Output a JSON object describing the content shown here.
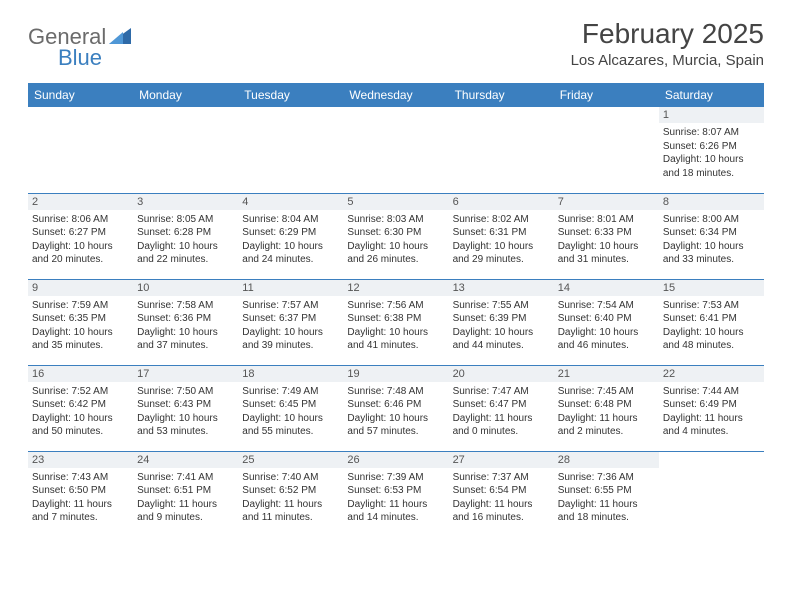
{
  "brand": {
    "part1": "General",
    "part2": "Blue",
    "text_color": "#6b6b6b",
    "accent_color": "#3b7fbf"
  },
  "title": {
    "month": "February 2025",
    "location": "Los Alcazares, Murcia, Spain",
    "title_fontsize": 28,
    "location_fontsize": 15
  },
  "colors": {
    "header_bg": "#3b7fbf",
    "header_text": "#ffffff",
    "daynum_bg": "#eef1f4",
    "border": "#3b7fbf",
    "body_text": "#333333"
  },
  "weekdays": [
    "Sunday",
    "Monday",
    "Tuesday",
    "Wednesday",
    "Thursday",
    "Friday",
    "Saturday"
  ],
  "weeks": [
    [
      {
        "day": "",
        "sunrise": "",
        "sunset": "",
        "daylight": "",
        "empty": true
      },
      {
        "day": "",
        "sunrise": "",
        "sunset": "",
        "daylight": "",
        "empty": true
      },
      {
        "day": "",
        "sunrise": "",
        "sunset": "",
        "daylight": "",
        "empty": true
      },
      {
        "day": "",
        "sunrise": "",
        "sunset": "",
        "daylight": "",
        "empty": true
      },
      {
        "day": "",
        "sunrise": "",
        "sunset": "",
        "daylight": "",
        "empty": true
      },
      {
        "day": "",
        "sunrise": "",
        "sunset": "",
        "daylight": "",
        "empty": true
      },
      {
        "day": "1",
        "sunrise": "Sunrise: 8:07 AM",
        "sunset": "Sunset: 6:26 PM",
        "daylight": "Daylight: 10 hours and 18 minutes."
      }
    ],
    [
      {
        "day": "2",
        "sunrise": "Sunrise: 8:06 AM",
        "sunset": "Sunset: 6:27 PM",
        "daylight": "Daylight: 10 hours and 20 minutes."
      },
      {
        "day": "3",
        "sunrise": "Sunrise: 8:05 AM",
        "sunset": "Sunset: 6:28 PM",
        "daylight": "Daylight: 10 hours and 22 minutes."
      },
      {
        "day": "4",
        "sunrise": "Sunrise: 8:04 AM",
        "sunset": "Sunset: 6:29 PM",
        "daylight": "Daylight: 10 hours and 24 minutes."
      },
      {
        "day": "5",
        "sunrise": "Sunrise: 8:03 AM",
        "sunset": "Sunset: 6:30 PM",
        "daylight": "Daylight: 10 hours and 26 minutes."
      },
      {
        "day": "6",
        "sunrise": "Sunrise: 8:02 AM",
        "sunset": "Sunset: 6:31 PM",
        "daylight": "Daylight: 10 hours and 29 minutes."
      },
      {
        "day": "7",
        "sunrise": "Sunrise: 8:01 AM",
        "sunset": "Sunset: 6:33 PM",
        "daylight": "Daylight: 10 hours and 31 minutes."
      },
      {
        "day": "8",
        "sunrise": "Sunrise: 8:00 AM",
        "sunset": "Sunset: 6:34 PM",
        "daylight": "Daylight: 10 hours and 33 minutes."
      }
    ],
    [
      {
        "day": "9",
        "sunrise": "Sunrise: 7:59 AM",
        "sunset": "Sunset: 6:35 PM",
        "daylight": "Daylight: 10 hours and 35 minutes."
      },
      {
        "day": "10",
        "sunrise": "Sunrise: 7:58 AM",
        "sunset": "Sunset: 6:36 PM",
        "daylight": "Daylight: 10 hours and 37 minutes."
      },
      {
        "day": "11",
        "sunrise": "Sunrise: 7:57 AM",
        "sunset": "Sunset: 6:37 PM",
        "daylight": "Daylight: 10 hours and 39 minutes."
      },
      {
        "day": "12",
        "sunrise": "Sunrise: 7:56 AM",
        "sunset": "Sunset: 6:38 PM",
        "daylight": "Daylight: 10 hours and 41 minutes."
      },
      {
        "day": "13",
        "sunrise": "Sunrise: 7:55 AM",
        "sunset": "Sunset: 6:39 PM",
        "daylight": "Daylight: 10 hours and 44 minutes."
      },
      {
        "day": "14",
        "sunrise": "Sunrise: 7:54 AM",
        "sunset": "Sunset: 6:40 PM",
        "daylight": "Daylight: 10 hours and 46 minutes."
      },
      {
        "day": "15",
        "sunrise": "Sunrise: 7:53 AM",
        "sunset": "Sunset: 6:41 PM",
        "daylight": "Daylight: 10 hours and 48 minutes."
      }
    ],
    [
      {
        "day": "16",
        "sunrise": "Sunrise: 7:52 AM",
        "sunset": "Sunset: 6:42 PM",
        "daylight": "Daylight: 10 hours and 50 minutes."
      },
      {
        "day": "17",
        "sunrise": "Sunrise: 7:50 AM",
        "sunset": "Sunset: 6:43 PM",
        "daylight": "Daylight: 10 hours and 53 minutes."
      },
      {
        "day": "18",
        "sunrise": "Sunrise: 7:49 AM",
        "sunset": "Sunset: 6:45 PM",
        "daylight": "Daylight: 10 hours and 55 minutes."
      },
      {
        "day": "19",
        "sunrise": "Sunrise: 7:48 AM",
        "sunset": "Sunset: 6:46 PM",
        "daylight": "Daylight: 10 hours and 57 minutes."
      },
      {
        "day": "20",
        "sunrise": "Sunrise: 7:47 AM",
        "sunset": "Sunset: 6:47 PM",
        "daylight": "Daylight: 11 hours and 0 minutes."
      },
      {
        "day": "21",
        "sunrise": "Sunrise: 7:45 AM",
        "sunset": "Sunset: 6:48 PM",
        "daylight": "Daylight: 11 hours and 2 minutes."
      },
      {
        "day": "22",
        "sunrise": "Sunrise: 7:44 AM",
        "sunset": "Sunset: 6:49 PM",
        "daylight": "Daylight: 11 hours and 4 minutes."
      }
    ],
    [
      {
        "day": "23",
        "sunrise": "Sunrise: 7:43 AM",
        "sunset": "Sunset: 6:50 PM",
        "daylight": "Daylight: 11 hours and 7 minutes."
      },
      {
        "day": "24",
        "sunrise": "Sunrise: 7:41 AM",
        "sunset": "Sunset: 6:51 PM",
        "daylight": "Daylight: 11 hours and 9 minutes."
      },
      {
        "day": "25",
        "sunrise": "Sunrise: 7:40 AM",
        "sunset": "Sunset: 6:52 PM",
        "daylight": "Daylight: 11 hours and 11 minutes."
      },
      {
        "day": "26",
        "sunrise": "Sunrise: 7:39 AM",
        "sunset": "Sunset: 6:53 PM",
        "daylight": "Daylight: 11 hours and 14 minutes."
      },
      {
        "day": "27",
        "sunrise": "Sunrise: 7:37 AM",
        "sunset": "Sunset: 6:54 PM",
        "daylight": "Daylight: 11 hours and 16 minutes."
      },
      {
        "day": "28",
        "sunrise": "Sunrise: 7:36 AM",
        "sunset": "Sunset: 6:55 PM",
        "daylight": "Daylight: 11 hours and 18 minutes."
      },
      {
        "day": "",
        "sunrise": "",
        "sunset": "",
        "daylight": "",
        "empty": true
      }
    ]
  ]
}
